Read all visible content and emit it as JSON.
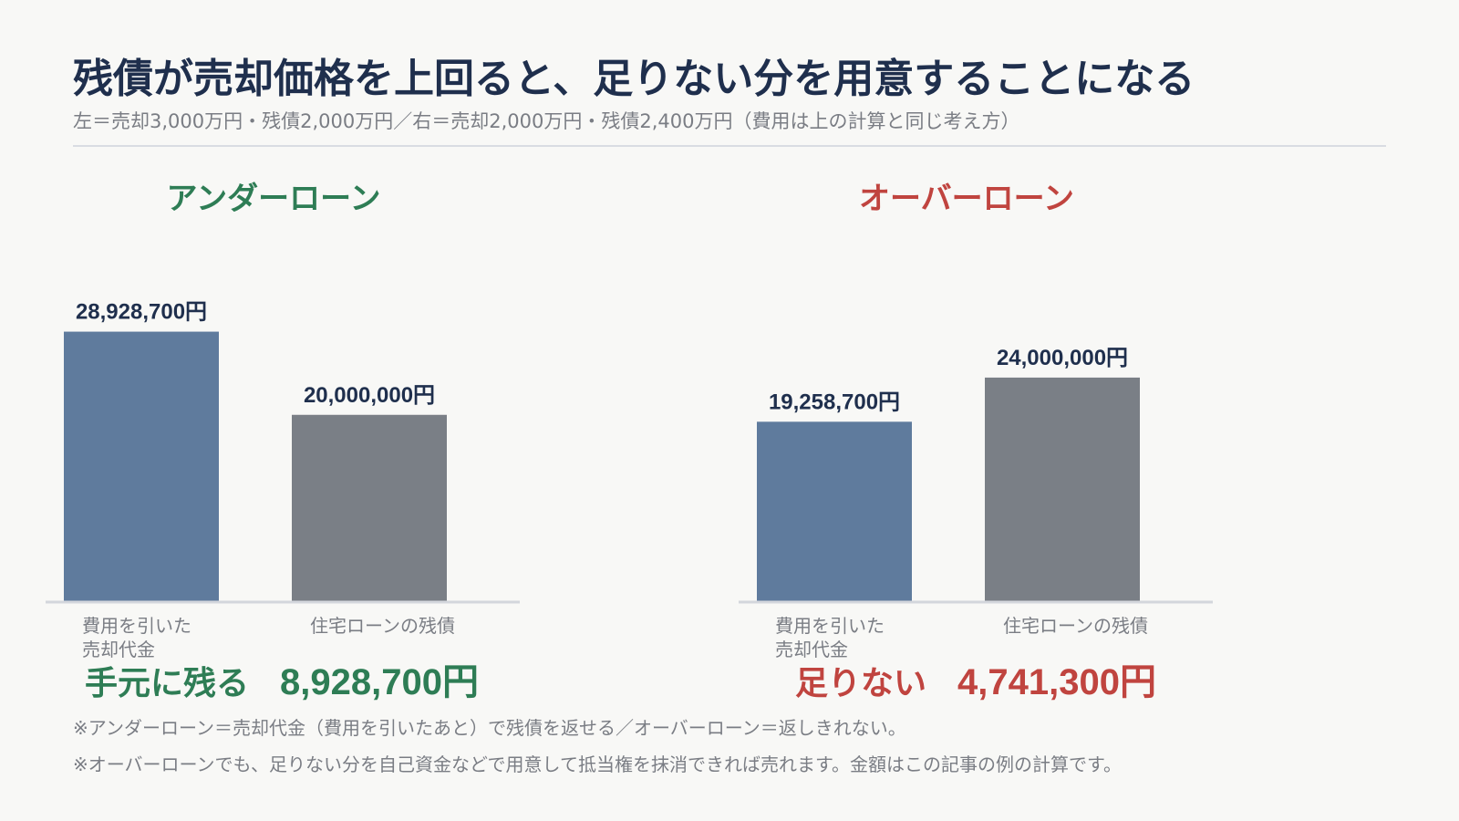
{
  "title": "残債が売却価格を上回ると、足りない分を用意することになる",
  "subtitle": "左＝売却3,000万円・残債2,000万円／右＝売却2,000万円・残債2,400万円（費用は上の計算と同じ考え方）",
  "colors": {
    "title": "#1f2f4d",
    "under_loan": "#2e7d55",
    "over_loan": "#c0443f",
    "bar_sale": "#5f7b9d",
    "bar_loan": "#7a7f86",
    "axis": "#d3d6dc"
  },
  "chart_data": [
    {
      "type": "bar",
      "title": "アンダーローン",
      "categories": [
        "費用を引いた売却代金",
        "住宅ローンの残債"
      ],
      "category_lines": [
        [
          "費用を引いた",
          "売却代金"
        ],
        [
          "住宅ローンの残債"
        ]
      ],
      "values": [
        28928700,
        20000000
      ],
      "value_labels": [
        "28,928,700円",
        "20,000,000円"
      ],
      "ylim": [
        0,
        33000000
      ],
      "result_label": "手元に残る",
      "result_amount": "8,928,700円"
    },
    {
      "type": "bar",
      "title": "オーバーローン",
      "categories": [
        "費用を引いた売却代金",
        "住宅ローンの残債"
      ],
      "category_lines": [
        [
          "費用を引いた",
          "売却代金"
        ],
        [
          "住宅ローンの残債"
        ]
      ],
      "values": [
        19258700,
        24000000
      ],
      "value_labels": [
        "19,258,700円",
        "24,000,000円"
      ],
      "ylim": [
        0,
        33000000
      ],
      "result_label": "足りない",
      "result_amount": "4,741,300円"
    }
  ],
  "notes": [
    "※アンダーローン＝売却代金（費用を引いたあと）で残債を返せる／オーバーローン＝返しきれない。",
    "※オーバーローンでも、足りない分を自己資金などで用意して抵当権を抹消できれば売れます。金額はこの記事の例の計算です。"
  ]
}
